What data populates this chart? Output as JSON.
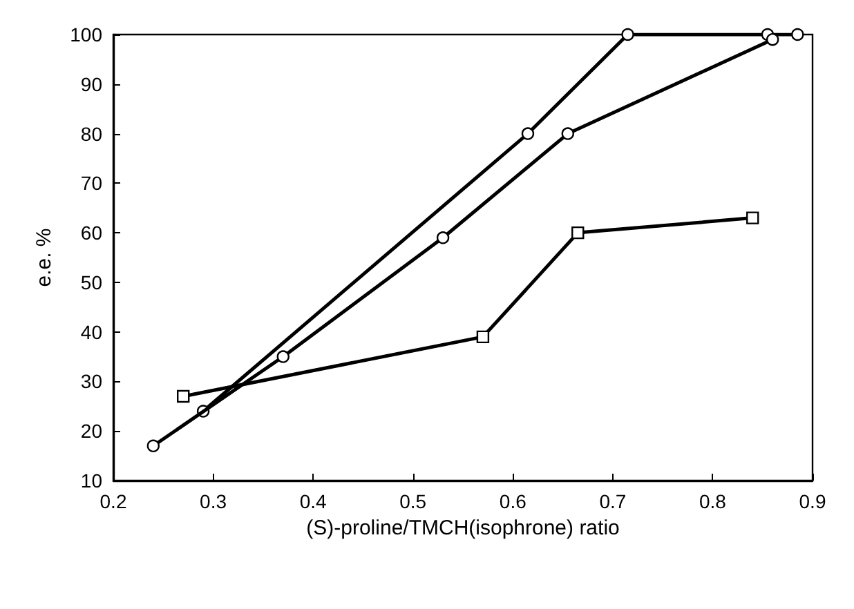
{
  "chart_data": {
    "type": "line",
    "xlabel": "(S)-proline/TMCH(isophrone) ratio",
    "ylabel": "e.e. %",
    "xlim": [
      0.2,
      0.9
    ],
    "xticks": [
      0.2,
      0.3,
      0.4,
      0.5,
      0.6,
      0.7,
      0.8,
      0.9
    ],
    "ylim": [
      10,
      100
    ],
    "yticks": [
      10,
      20,
      30,
      40,
      50,
      60,
      70,
      80,
      90,
      100
    ],
    "grid": false,
    "line_style": "solid",
    "series": [
      {
        "color": "#000000",
        "marker": "circle",
        "x": [
          0.24,
          0.37,
          0.53,
          0.655,
          0.86
        ],
        "values": [
          17,
          35,
          59,
          80,
          99
        ]
      },
      {
        "color": "#000000",
        "marker": "circle",
        "x": [
          0.29,
          0.615,
          0.715,
          0.855,
          0.885
        ],
        "values": [
          24,
          80,
          100,
          100,
          100
        ]
      },
      {
        "color": "#000000",
        "marker": "square",
        "x": [
          0.27,
          0.57,
          0.665,
          0.84
        ],
        "values": [
          27,
          39,
          60,
          63
        ]
      }
    ]
  }
}
